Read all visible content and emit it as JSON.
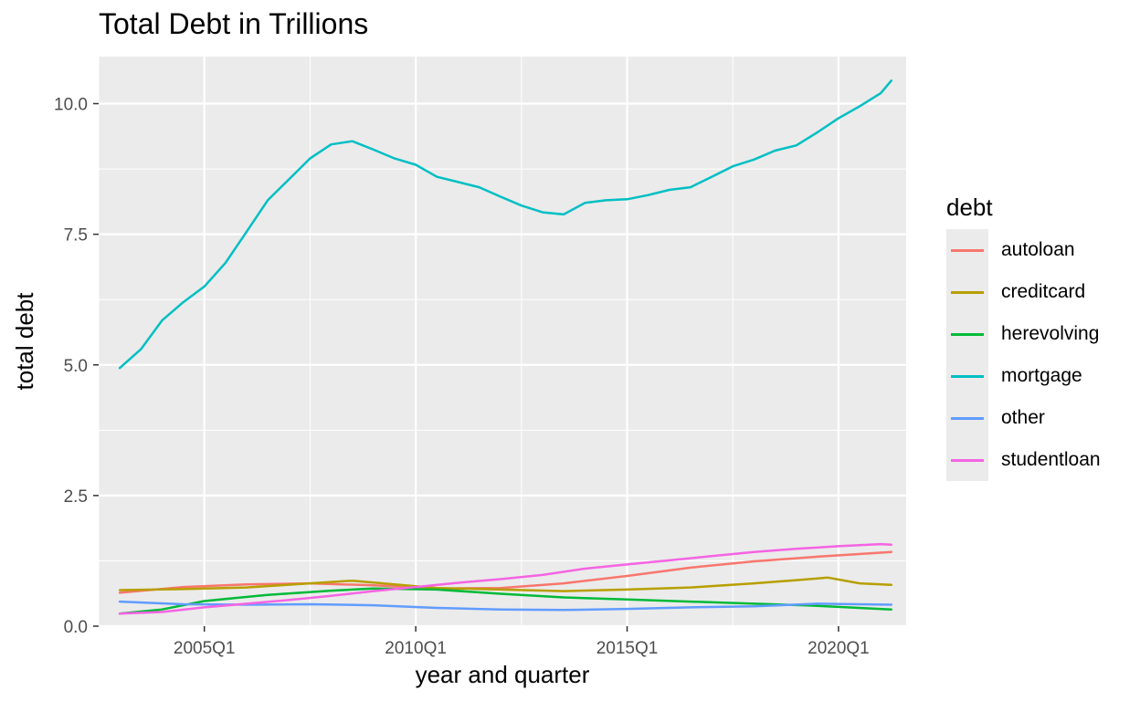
{
  "chart_data": {
    "type": "line",
    "title": "Total Debt in Trillions",
    "xlabel": "year and quarter",
    "ylabel": "total debt",
    "x_tick_labels": [
      "2005Q1",
      "2010Q1",
      "2015Q1",
      "2020Q1"
    ],
    "y_tick_labels": [
      "0.0",
      "2.5",
      "5.0",
      "7.5",
      "10.0"
    ],
    "ylim": [
      0,
      10.9
    ],
    "xlim": [
      2002.5,
      2021.6
    ],
    "grid": true,
    "legend": {
      "title": "debt",
      "placement": "right"
    },
    "series": [
      {
        "name": "autoloan",
        "color": "#F8766D",
        "x": [
          2003.0,
          2004.5,
          2006.0,
          2007.5,
          2009.0,
          2010.5,
          2012.0,
          2013.5,
          2015.0,
          2016.5,
          2018.0,
          2019.5,
          2021.25
        ],
        "y": [
          0.64,
          0.75,
          0.8,
          0.82,
          0.78,
          0.72,
          0.73,
          0.82,
          0.96,
          1.12,
          1.24,
          1.33,
          1.42
        ]
      },
      {
        "name": "creditcard",
        "color": "#B79F00",
        "x": [
          2003.0,
          2004.5,
          2006.0,
          2007.5,
          2008.5,
          2009.5,
          2010.5,
          2012.0,
          2013.5,
          2015.0,
          2016.5,
          2018.0,
          2019.0,
          2019.75,
          2020.5,
          2021.25
        ],
        "y": [
          0.69,
          0.71,
          0.74,
          0.82,
          0.87,
          0.8,
          0.73,
          0.7,
          0.67,
          0.7,
          0.74,
          0.82,
          0.88,
          0.93,
          0.82,
          0.79
        ]
      },
      {
        "name": "herevolving",
        "color": "#00BA38",
        "x": [
          2003.0,
          2004.0,
          2005.0,
          2006.5,
          2008.0,
          2009.0,
          2010.5,
          2012.0,
          2013.5,
          2015.0,
          2016.5,
          2018.0,
          2019.5,
          2021.25
        ],
        "y": [
          0.24,
          0.32,
          0.48,
          0.6,
          0.68,
          0.72,
          0.7,
          0.62,
          0.55,
          0.51,
          0.47,
          0.43,
          0.39,
          0.32
        ]
      },
      {
        "name": "mortgage",
        "color": "#00BFC4",
        "x": [
          2003.0,
          2003.5,
          2004.0,
          2004.5,
          2005.0,
          2005.5,
          2006.0,
          2006.5,
          2007.0,
          2007.5,
          2008.0,
          2008.5,
          2009.0,
          2009.5,
          2010.0,
          2010.5,
          2011.0,
          2011.5,
          2012.0,
          2012.5,
          2013.0,
          2013.5,
          2014.0,
          2014.5,
          2015.0,
          2015.5,
          2016.0,
          2016.5,
          2017.0,
          2017.5,
          2018.0,
          2018.5,
          2019.0,
          2019.5,
          2020.0,
          2020.5,
          2021.0,
          2021.25
        ],
        "y": [
          4.94,
          5.3,
          5.85,
          6.2,
          6.5,
          6.95,
          7.55,
          8.15,
          8.55,
          8.95,
          9.22,
          9.28,
          9.12,
          8.95,
          8.83,
          8.6,
          8.5,
          8.4,
          8.22,
          8.05,
          7.92,
          7.88,
          8.1,
          8.15,
          8.17,
          8.25,
          8.35,
          8.4,
          8.6,
          8.8,
          8.93,
          9.1,
          9.2,
          9.45,
          9.72,
          9.95,
          10.2,
          10.44
        ]
      },
      {
        "name": "other",
        "color": "#619CFF",
        "x": [
          2003.0,
          2004.5,
          2006.0,
          2007.5,
          2009.0,
          2010.5,
          2012.0,
          2013.5,
          2015.0,
          2016.5,
          2018.0,
          2019.5,
          2021.25
        ],
        "y": [
          0.47,
          0.42,
          0.41,
          0.42,
          0.4,
          0.35,
          0.32,
          0.31,
          0.33,
          0.36,
          0.38,
          0.43,
          0.41
        ]
      },
      {
        "name": "studentloan",
        "color": "#F564E3",
        "x": [
          2003.0,
          2004.0,
          2005.0,
          2006.0,
          2007.0,
          2008.0,
          2009.0,
          2010.0,
          2011.0,
          2012.0,
          2013.0,
          2014.0,
          2015.0,
          2016.0,
          2017.0,
          2018.0,
          2019.0,
          2020.0,
          2021.0,
          2021.25
        ],
        "y": [
          0.24,
          0.27,
          0.36,
          0.43,
          0.5,
          0.58,
          0.67,
          0.75,
          0.83,
          0.9,
          0.98,
          1.1,
          1.18,
          1.26,
          1.34,
          1.42,
          1.48,
          1.53,
          1.57,
          1.56
        ]
      }
    ]
  }
}
